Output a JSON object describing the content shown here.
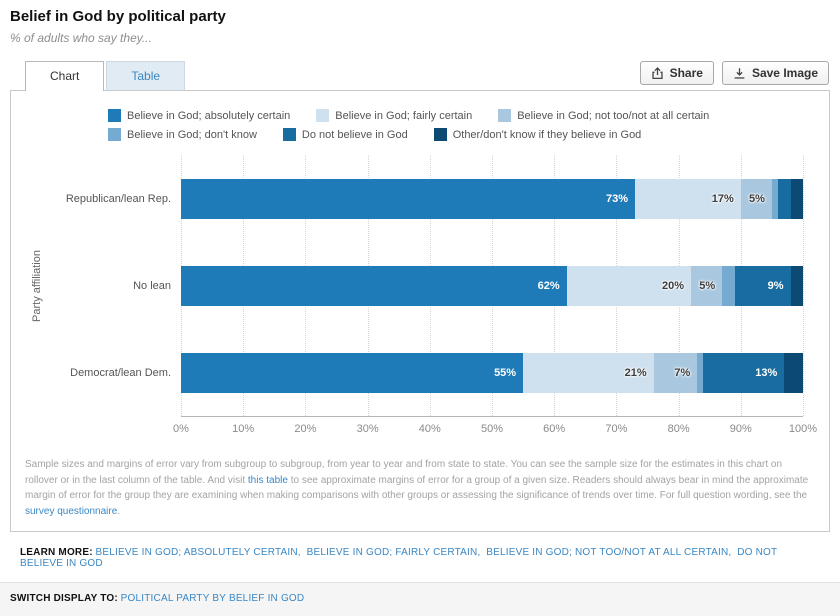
{
  "header": {
    "title": "Belief in God by political party",
    "subtitle": "% of adults who say they..."
  },
  "tabs": {
    "chart": "Chart",
    "table": "Table"
  },
  "toolbar": {
    "share": "Share",
    "save": "Save Image"
  },
  "chart_data": {
    "type": "bar",
    "orientation": "horizontal",
    "stacked": true,
    "ylabel": "Party affiliation",
    "categories": [
      "Republican/lean Rep.",
      "No lean",
      "Democrat/lean Dem."
    ],
    "series": [
      {
        "name": "Believe in God; absolutely certain",
        "color": "#1f7bb8",
        "values": [
          73,
          62,
          55
        ]
      },
      {
        "name": "Believe in God; fairly certain",
        "color": "#cfe0ee",
        "values": [
          17,
          20,
          21
        ]
      },
      {
        "name": "Believe in God; not too/not at all certain",
        "color": "#a9c8df",
        "values": [
          5,
          5,
          7
        ]
      },
      {
        "name": "Believe in God; don't know",
        "color": "#75abd0",
        "values": [
          1,
          2,
          1
        ]
      },
      {
        "name": "Do not believe in God",
        "color": "#186c9f",
        "values": [
          2,
          9,
          13
        ]
      },
      {
        "name": "Other/don't know if they believe in God",
        "color": "#0c4a73",
        "values": [
          2,
          2,
          3
        ]
      }
    ],
    "x_ticks": [
      "0%",
      "10%",
      "20%",
      "30%",
      "40%",
      "50%",
      "60%",
      "70%",
      "80%",
      "90%",
      "100%"
    ],
    "xlim": [
      0,
      100
    ],
    "label_threshold": 5,
    "grid": "vertical-dotted",
    "legend_position": "top"
  },
  "footnote": {
    "part1": "Sample sizes and margins of error vary from subgroup to subgroup, from year to year and from state to state. You can see the sample size for the estimates in this chart on rollover or in the last column of the table. And visit ",
    "link1": "this table",
    "part2": " to see approximate margins of error for a group of a given size. Readers should always bear in mind the approximate margin of error for the group they are examining when making comparisons with other groups or assessing the significance of trends over time. For full question wording, see the ",
    "link2": "survey questionnaire",
    "part3": "."
  },
  "learn_more": {
    "label": "LEARN MORE:",
    "links": [
      "BELIEVE IN GOD; ABSOLUTELY CERTAIN",
      "BELIEVE IN GOD; FAIRLY CERTAIN",
      "BELIEVE IN GOD; NOT TOO/NOT AT ALL CERTAIN",
      "DO NOT BELIEVE IN GOD"
    ]
  },
  "switch_display": {
    "label": "SWITCH DISPLAY TO:",
    "link": "POLITICAL PARTY BY BELIEF IN GOD"
  }
}
